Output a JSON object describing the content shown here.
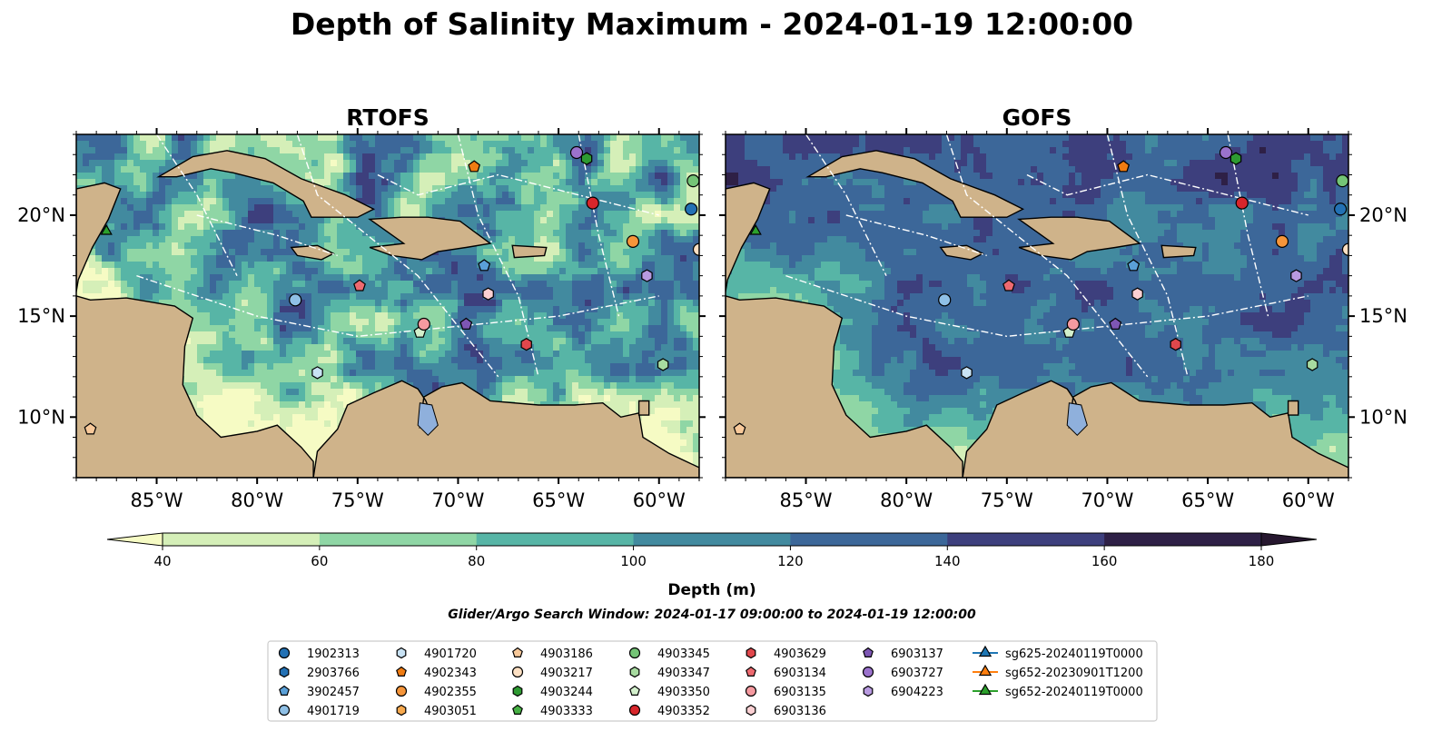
{
  "figure_title": "Depth of Salinity Maximum - 2024-01-19 12:00:00",
  "chart_data": {
    "type": "map",
    "panels": [
      {
        "title": "RTOFS",
        "model": "RTOFS"
      },
      {
        "title": "GOFS",
        "model": "GOFS"
      }
    ],
    "extent": {
      "lon": [
        -89,
        -58
      ],
      "lat": [
        7,
        24
      ]
    },
    "lon_ticks": [
      -85,
      -80,
      -75,
      -70,
      -65,
      -60
    ],
    "lon_tick_labels": [
      "85°W",
      "80°W",
      "75°W",
      "70°W",
      "65°W",
      "60°W"
    ],
    "lat_ticks": [
      10,
      15,
      20
    ],
    "lat_tick_labels": [
      "10°N",
      "15°N",
      "20°N"
    ],
    "colorbar": {
      "label": "Depth (m)",
      "levels": [
        40,
        60,
        80,
        100,
        120,
        140,
        160,
        180
      ],
      "tick_labels": [
        "40",
        "60",
        "80",
        "100",
        "120",
        "140",
        "160",
        "180"
      ],
      "colors": [
        "#d5efb8",
        "#8fd6a5",
        "#57b5a6",
        "#428a9f",
        "#3c6799",
        "#3d3f7d",
        "#2e2046"
      ],
      "extend_low_color": "#f6fbc4",
      "extend_high_color": "#26172f"
    },
    "search_window": "Glider/Argo Search Window: 2024-01-17 09:00:00 to 2024-01-19 12:00:00",
    "platforms": [
      {
        "id": "1902313",
        "marker": "circle",
        "color": "#2371b4",
        "lon": -58.4,
        "lat": 20.3
      },
      {
        "id": "2903766",
        "marker": "hexagon",
        "color": "#2371b4",
        "lon": null,
        "lat": null
      },
      {
        "id": "3902457",
        "marker": "pentagon",
        "color": "#5aa0d8",
        "lon": -68.7,
        "lat": 17.5
      },
      {
        "id": "4901719",
        "marker": "circle",
        "color": "#8fc0e6",
        "lon": -78.1,
        "lat": 15.8
      },
      {
        "id": "4901720",
        "marker": "hexagon",
        "color": "#c8e2f4",
        "lon": -77.0,
        "lat": 12.2
      },
      {
        "id": "4902343",
        "marker": "pentagon",
        "color": "#f07c12",
        "lon": -69.2,
        "lat": 22.4
      },
      {
        "id": "4902355",
        "marker": "circle",
        "color": "#f5953a",
        "lon": -61.3,
        "lat": 18.7
      },
      {
        "id": "4903051",
        "marker": "hexagon",
        "color": "#f7a94e",
        "lon": null,
        "lat": null
      },
      {
        "id": "4903186",
        "marker": "pentagon",
        "color": "#f8c99a",
        "lon": -88.3,
        "lat": 9.4
      },
      {
        "id": "4903217",
        "marker": "circle",
        "color": "#fde0c3",
        "lon": -58.0,
        "lat": 18.3
      },
      {
        "id": "4903244",
        "marker": "hexagon",
        "color": "#2e9a32",
        "lon": -63.6,
        "lat": 22.8
      },
      {
        "id": "4903333",
        "marker": "pentagon",
        "color": "#46b044",
        "lon": null,
        "lat": null
      },
      {
        "id": "4903345",
        "marker": "circle",
        "color": "#74c476",
        "lon": -58.3,
        "lat": 21.7
      },
      {
        "id": "4903347",
        "marker": "hexagon",
        "color": "#a7dba0",
        "lon": -59.8,
        "lat": 12.6
      },
      {
        "id": "4903350",
        "marker": "pentagon",
        "color": "#d3f0cc",
        "lon": -71.9,
        "lat": 14.2
      },
      {
        "id": "4903352",
        "marker": "circle",
        "color": "#d8262b",
        "lon": -63.3,
        "lat": 20.6
      },
      {
        "id": "4903629",
        "marker": "hexagon",
        "color": "#e0474c",
        "lon": -66.6,
        "lat": 13.6
      },
      {
        "id": "6903134",
        "marker": "pentagon",
        "color": "#ee6a70",
        "lon": -74.9,
        "lat": 16.5
      },
      {
        "id": "6903135",
        "marker": "circle",
        "color": "#f59aa0",
        "lon": -71.7,
        "lat": 14.6
      },
      {
        "id": "6903136",
        "marker": "hexagon",
        "color": "#fbd0d3",
        "lon": -68.5,
        "lat": 16.1
      },
      {
        "id": "6903137",
        "marker": "pentagon",
        "color": "#7d56b4",
        "lon": -69.6,
        "lat": 14.6
      },
      {
        "id": "6903727",
        "marker": "circle",
        "color": "#9b72cd",
        "lon": -64.1,
        "lat": 23.1
      },
      {
        "id": "6904223",
        "marker": "hexagon",
        "color": "#b89ae0",
        "lon": -60.6,
        "lat": 17.0
      },
      {
        "id": "sg625-20240119T0000",
        "marker": "triangle",
        "color": "#1f77b4",
        "line": true,
        "lon": null,
        "lat": null
      },
      {
        "id": "sg652-20230901T1200",
        "marker": "triangle",
        "color": "#ff7f0e",
        "line": true,
        "lon": null,
        "lat": null
      },
      {
        "id": "sg652-20240119T0000",
        "marker": "triangle",
        "color": "#2ca02c",
        "line": true,
        "lon": -87.5,
        "lat": 19.2
      }
    ],
    "grid": false,
    "legend_position": "bottom"
  }
}
